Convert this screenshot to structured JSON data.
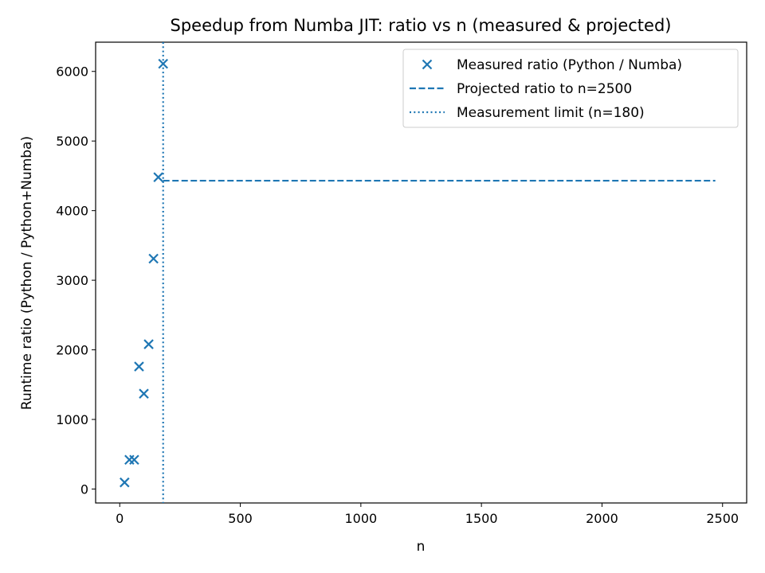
{
  "chart_data": {
    "type": "scatter",
    "title": "Speedup from Numba JIT: ratio vs n (measured & projected)",
    "xlabel": "n",
    "ylabel": "Runtime ratio (Python / Python+Numba)",
    "xlim": [
      -100,
      2600
    ],
    "ylim": [
      -200,
      6420
    ],
    "xticks": [
      0,
      500,
      1000,
      1500,
      2000,
      2500
    ],
    "yticks": [
      0,
      1000,
      2000,
      3000,
      4000,
      5000,
      6000
    ],
    "grid": false,
    "legend_position": "upper right",
    "series": [
      {
        "name": "Measured ratio (Python / Numba)",
        "kind": "scatter",
        "marker": "x",
        "color": "#1f77b4",
        "x": [
          20,
          40,
          60,
          80,
          100,
          120,
          140,
          160,
          180
        ],
        "y": [
          95,
          420,
          420,
          1760,
          1370,
          2080,
          3310,
          4480,
          6110
        ]
      },
      {
        "name": "Projected ratio to n=2500",
        "kind": "line",
        "linestyle": "dashed",
        "color": "#1f77b4",
        "x": [
          180,
          2470
        ],
        "y": [
          4430,
          4430
        ]
      },
      {
        "name": "Measurement limit (n=180)",
        "kind": "vline",
        "linestyle": "dotted",
        "color": "#1f77b4",
        "x": 180
      }
    ]
  }
}
